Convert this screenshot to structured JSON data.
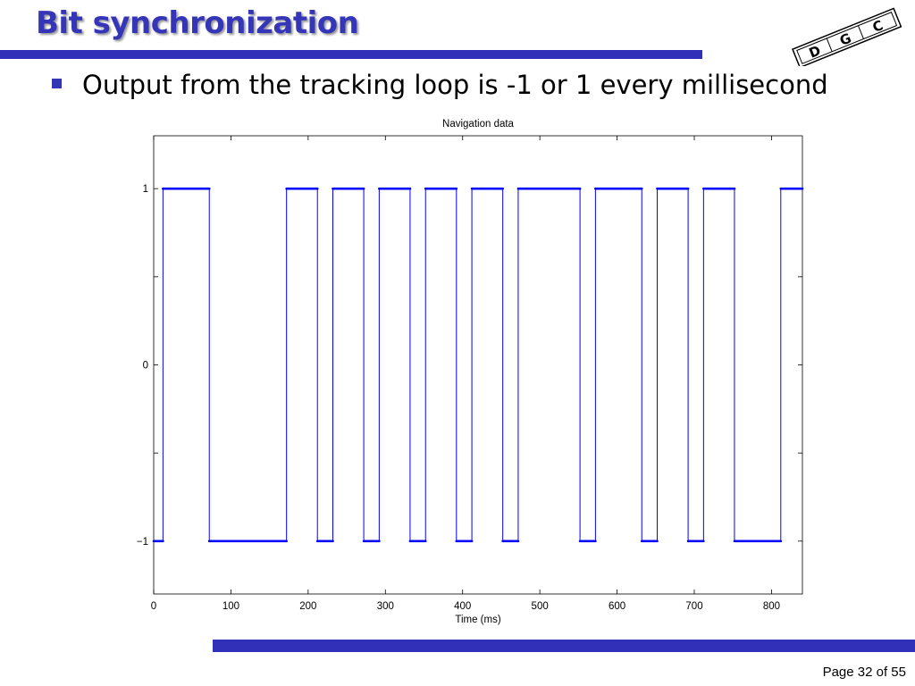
{
  "slide": {
    "title": "Bit synchronization",
    "bullet": "Output from the tracking loop is -1 or 1 every millisecond",
    "page_label": "Page 32 of 55",
    "logo_letters": [
      "D",
      "G",
      "C"
    ]
  },
  "colors": {
    "title": "#3535b8",
    "bar": "#3030b8",
    "series": "#0000ff"
  },
  "chart_data": {
    "type": "line",
    "title": "Navigation data",
    "xlabel": "Time (ms)",
    "ylabel": "",
    "xlim": [
      0,
      840
    ],
    "ylim": [
      -1.3,
      1.3
    ],
    "xticks": [
      0,
      100,
      200,
      300,
      400,
      500,
      600,
      700,
      800
    ],
    "yticks": [
      -1,
      0,
      1
    ],
    "ytick_labels": [
      "−1",
      "0",
      "1"
    ],
    "grid": false,
    "series": [
      {
        "marker": "dot",
        "segments": [
          {
            "start": 0,
            "end": 12,
            "value": -1
          },
          {
            "start": 12,
            "end": 72,
            "value": 1
          },
          {
            "start": 72,
            "end": 172,
            "value": -1
          },
          {
            "start": 172,
            "end": 212,
            "value": 1
          },
          {
            "start": 212,
            "end": 232,
            "value": -1
          },
          {
            "start": 232,
            "end": 272,
            "value": 1
          },
          {
            "start": 272,
            "end": 292,
            "value": -1
          },
          {
            "start": 292,
            "end": 332,
            "value": 1
          },
          {
            "start": 332,
            "end": 352,
            "value": -1
          },
          {
            "start": 352,
            "end": 392,
            "value": 1
          },
          {
            "start": 392,
            "end": 412,
            "value": -1
          },
          {
            "start": 412,
            "end": 452,
            "value": 1
          },
          {
            "start": 452,
            "end": 472,
            "value": -1
          },
          {
            "start": 472,
            "end": 552,
            "value": 1
          },
          {
            "start": 552,
            "end": 572,
            "value": -1
          },
          {
            "start": 572,
            "end": 632,
            "value": 1
          },
          {
            "start": 632,
            "end": 652,
            "value": -1
          },
          {
            "start": 652,
            "end": 692,
            "value": 1
          },
          {
            "start": 692,
            "end": 712,
            "value": -1
          },
          {
            "start": 712,
            "end": 752,
            "value": 1
          },
          {
            "start": 752,
            "end": 812,
            "value": -1
          },
          {
            "start": 812,
            "end": 840,
            "value": 1
          }
        ]
      }
    ]
  }
}
